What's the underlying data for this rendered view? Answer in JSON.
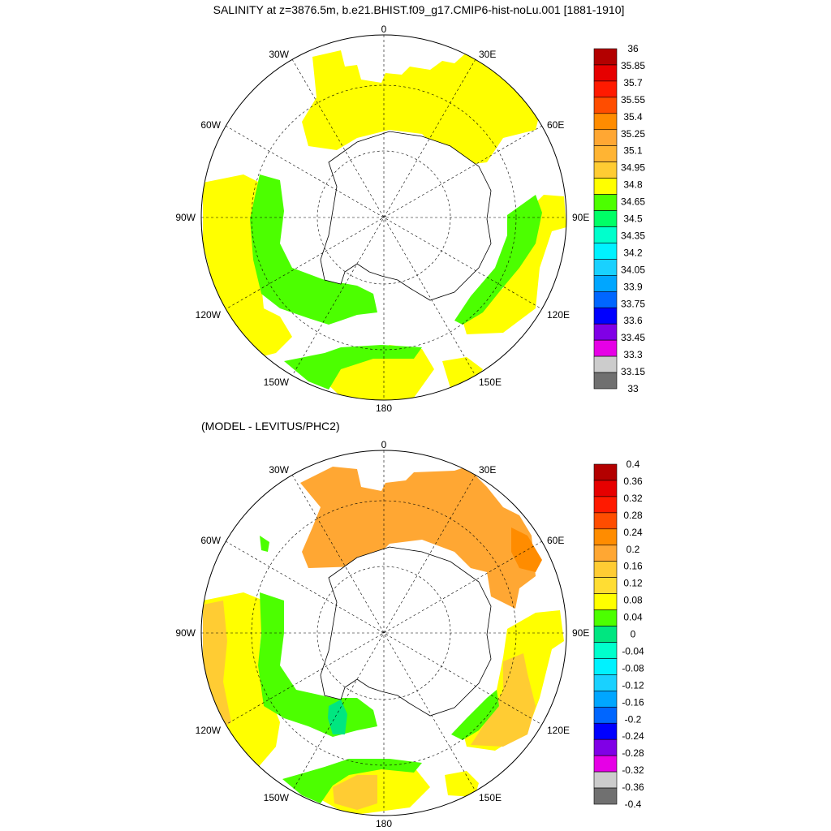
{
  "title": "SALINITY at z=3876.5m, b.e21.BHIST.f09_g17.CMIP6-hist-noLu.001 [1881-1910]",
  "subtitle": "(MODEL - LEVITUS/PHC2)",
  "longitude_labels": {
    "top": "0",
    "bottom": "180",
    "left": "90W",
    "right": "90E",
    "upper_left": [
      "30W",
      "60W"
    ],
    "upper_right": [
      "30E",
      "60E"
    ],
    "lower_left": [
      "120W",
      "150W"
    ],
    "lower_right": [
      "120E",
      "150E"
    ]
  },
  "colors": {
    "yellow": "#ffff00",
    "green": "#4cff00",
    "light_orange": "#ffcc33",
    "orange": "#ffa733",
    "dark_orange": "#ff8c00",
    "sea_green": "#00e680",
    "land_line": "#000000",
    "grid_line": "#000000"
  },
  "panels": [
    {
      "name": "salinity",
      "colorbar": {
        "labels": [
          "36",
          "35.85",
          "35.7",
          "35.55",
          "35.4",
          "35.25",
          "35.1",
          "34.95",
          "34.8",
          "34.65",
          "34.5",
          "34.35",
          "34.2",
          "34.05",
          "33.9",
          "33.75",
          "33.6",
          "33.45",
          "33.3",
          "33.15",
          "33"
        ],
        "colors": [
          "#b30000",
          "#e60000",
          "#ff1a00",
          "#ff4d00",
          "#ff8c00",
          "#ffa733",
          "#ffb433",
          "#ffcc33",
          "#ffff00",
          "#4cff00",
          "#00ff66",
          "#00ffcc",
          "#00f2ff",
          "#19d1ff",
          "#00a6ff",
          "#0066ff",
          "#0000ff",
          "#8000e6",
          "#e600e6",
          "#cccccc",
          "#707070"
        ]
      }
    },
    {
      "name": "difference",
      "colorbar": {
        "labels": [
          "0.4",
          "0.36",
          "0.32",
          "0.28",
          "0.24",
          "0.2",
          "0.16",
          "0.12",
          "0.08",
          "0.04",
          "0",
          "-0.04",
          "-0.08",
          "-0.12",
          "-0.16",
          "-0.2",
          "-0.24",
          "-0.28",
          "-0.32",
          "-0.36",
          "-0.4"
        ],
        "colors": [
          "#b30000",
          "#e60000",
          "#ff1a00",
          "#ff4d00",
          "#ff8c00",
          "#ffa733",
          "#ffcc33",
          "#ffdd33",
          "#ffff00",
          "#4cff00",
          "#00e680",
          "#00ffcc",
          "#00f2ff",
          "#19d1ff",
          "#00a6ff",
          "#0066ff",
          "#0000ff",
          "#8000e6",
          "#e600e6",
          "#cccccc",
          "#707070"
        ]
      }
    }
  ]
}
